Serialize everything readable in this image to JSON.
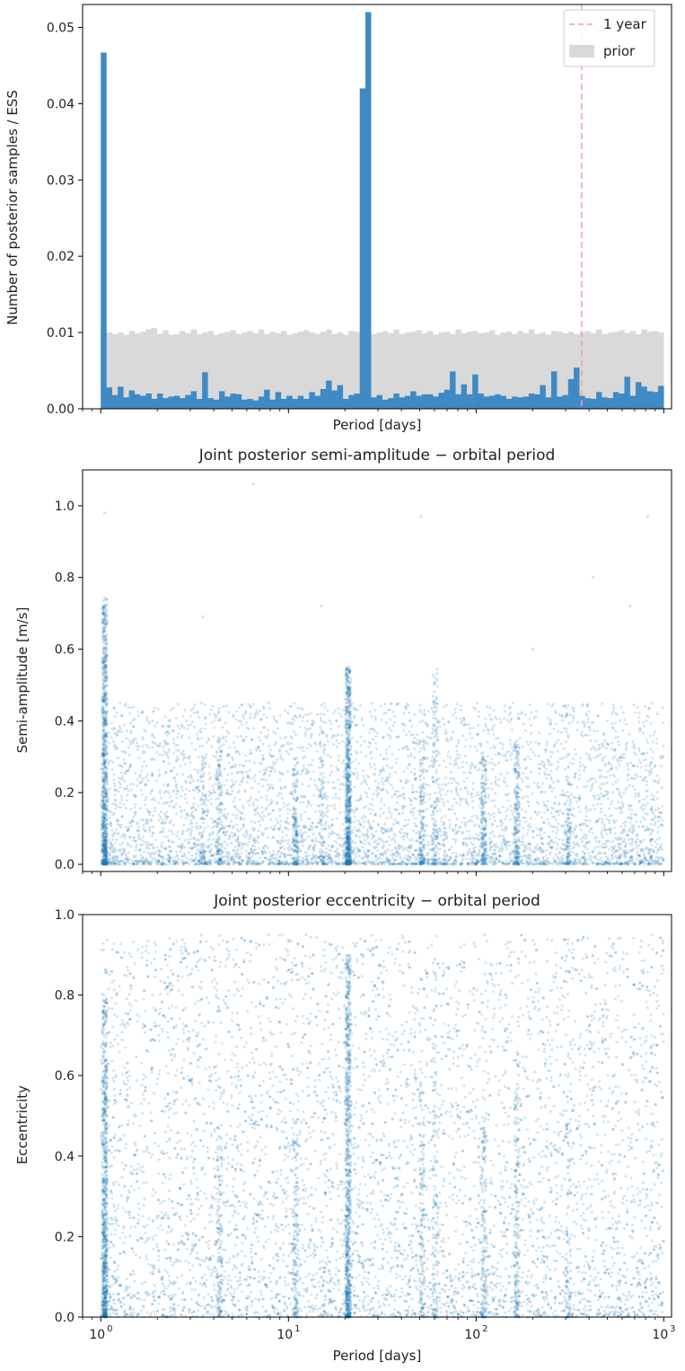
{
  "chart_data": [
    {
      "type": "bar",
      "title": "",
      "xlabel": "Period [days]",
      "ylabel": "Number of posterior samples / ESS",
      "xscale": "log",
      "xlim": [
        0.8,
        1100
      ],
      "ylim": [
        0,
        0.053
      ],
      "yticks": [
        0.0,
        0.01,
        0.02,
        0.03,
        0.04,
        0.05
      ],
      "ytick_labels": [
        "0.00",
        "0.01",
        "0.02",
        "0.03",
        "0.04",
        "0.05"
      ],
      "grid": false,
      "legend_placement": "top-right",
      "legend": [
        {
          "label": "1 year",
          "kind": "dashed-line",
          "color": "#f4a0a0"
        },
        {
          "label": "prior",
          "kind": "patch",
          "color": "#d9d9d9"
        }
      ],
      "reference_line": {
        "label": "1 year",
        "x": 365.25
      },
      "bins": {
        "start": 1,
        "end": 1000,
        "count": 100
      },
      "series": [
        {
          "name": "prior",
          "color": "#d9d9d9",
          "values": [
            0.0097,
            0.01,
            0.0098,
            0.01,
            0.0097,
            0.0102,
            0.0099,
            0.0101,
            0.0104,
            0.0106,
            0.0098,
            0.0103,
            0.0097,
            0.0098,
            0.0102,
            0.0099,
            0.0104,
            0.0098,
            0.01,
            0.0102,
            0.0097,
            0.0099,
            0.0101,
            0.0103,
            0.0098,
            0.01,
            0.0102,
            0.0099,
            0.0104,
            0.0098,
            0.0101,
            0.0099,
            0.0102,
            0.0097,
            0.0099,
            0.0101,
            0.0103,
            0.01,
            0.0098,
            0.0101,
            0.0104,
            0.0098,
            0.01,
            0.0097,
            0.0102,
            0.0101,
            0.0099,
            0.0101,
            0.0098,
            0.01,
            0.0102,
            0.0099,
            0.0104,
            0.0098,
            0.01,
            0.0101,
            0.0103,
            0.0099,
            0.0102,
            0.0097,
            0.01,
            0.0101,
            0.0098,
            0.0104,
            0.0099,
            0.0101,
            0.0102,
            0.0099,
            0.01,
            0.0103,
            0.0097,
            0.01,
            0.0101,
            0.0098,
            0.0102,
            0.0099,
            0.0104,
            0.0098,
            0.01,
            0.0097,
            0.0102,
            0.0101,
            0.0099,
            0.0101,
            0.0098,
            0.01,
            0.0102,
            0.0099,
            0.0104,
            0.0098,
            0.01,
            0.0101,
            0.0103,
            0.0099,
            0.0102,
            0.0098,
            0.0104,
            0.0101,
            0.0102,
            0.01
          ]
        },
        {
          "name": "posterior",
          "color": "#3f8ac4",
          "values": [
            0.0467,
            0.0028,
            0.0018,
            0.0029,
            0.0015,
            0.0024,
            0.0019,
            0.0017,
            0.002,
            0.0013,
            0.002,
            0.0014,
            0.0016,
            0.0017,
            0.0014,
            0.0018,
            0.0023,
            0.0013,
            0.0048,
            0.0014,
            0.0012,
            0.0023,
            0.0016,
            0.002,
            0.0019,
            0.0012,
            0.0013,
            0.0011,
            0.0016,
            0.0025,
            0.0012,
            0.0022,
            0.0013,
            0.0017,
            0.0013,
            0.0017,
            0.0013,
            0.0022,
            0.0017,
            0.0026,
            0.0037,
            0.0024,
            0.0031,
            0.0013,
            0.0018,
            0.002,
            0.042,
            0.052,
            0.0015,
            0.0018,
            0.0012,
            0.0014,
            0.002,
            0.0015,
            0.0017,
            0.0023,
            0.0017,
            0.0019,
            0.0019,
            0.0016,
            0.0021,
            0.0025,
            0.0049,
            0.0019,
            0.0032,
            0.0019,
            0.0045,
            0.002,
            0.0016,
            0.0017,
            0.0019,
            0.0017,
            0.0013,
            0.0016,
            0.0015,
            0.0016,
            0.002,
            0.0019,
            0.0031,
            0.0015,
            0.0049,
            0.0016,
            0.0018,
            0.0039,
            0.0054,
            0.0017,
            0.0014,
            0.0013,
            0.0022,
            0.0015,
            0.0014,
            0.0022,
            0.002,
            0.0042,
            0.0017,
            0.0035,
            0.0029,
            0.0023,
            0.0022,
            0.003
          ]
        }
      ]
    },
    {
      "type": "scatter",
      "title": "Joint posterior semi-amplitude − orbital period",
      "xlabel": "",
      "ylabel": "Semi-amplitude [m/s]",
      "xscale": "log",
      "xlim": [
        0.8,
        1100
      ],
      "ylim": [
        -0.02,
        1.1
      ],
      "yticks": [
        0.0,
        0.2,
        0.4,
        0.6,
        0.8,
        1.0
      ],
      "ytick_labels": [
        "0.0",
        "0.2",
        "0.4",
        "0.6",
        "0.8",
        "1.0"
      ],
      "grid": false,
      "marker_color": "#1f77b4",
      "marker_opacity": 0.2,
      "background_samples": {
        "count": 5200,
        "period_range": [
          1,
          1000
        ],
        "value_range": [
          0,
          0.45
        ],
        "distribution": "concentrated near 0"
      },
      "clusters": [
        {
          "period": 1.05,
          "count": 700,
          "max": 0.75
        },
        {
          "period": 20.8,
          "count": 650,
          "max": 0.55
        },
        {
          "period": 10.9,
          "count": 130,
          "max": 0.3
        },
        {
          "period": 4.3,
          "count": 100,
          "max": 0.35
        },
        {
          "period": 51.5,
          "count": 120,
          "max": 0.35
        },
        {
          "period": 60.5,
          "count": 90,
          "max": 0.55
        },
        {
          "period": 110,
          "count": 140,
          "max": 0.3
        },
        {
          "period": 165,
          "count": 160,
          "max": 0.35
        },
        {
          "period": 310,
          "count": 80,
          "max": 0.25
        },
        {
          "period": 3.5,
          "count": 60,
          "max": 0.3
        },
        {
          "period": 15,
          "count": 60,
          "max": 0.45
        }
      ],
      "outliers": [
        [
          6.5,
          1.06
        ],
        [
          1.05,
          0.98
        ],
        [
          51,
          0.97
        ],
        [
          15,
          0.72
        ],
        [
          820,
          0.97
        ],
        [
          420,
          0.8
        ],
        [
          660,
          0.72
        ],
        [
          200,
          0.6
        ],
        [
          3.5,
          0.69
        ]
      ]
    },
    {
      "type": "scatter",
      "title": "Joint posterior eccentricity − orbital period",
      "xlabel": "Period [days]",
      "ylabel": "Eccentricity",
      "xscale": "log",
      "xlim": [
        0.8,
        1100
      ],
      "ylim": [
        0,
        1.0
      ],
      "yticks": [
        0.0,
        0.2,
        0.4,
        0.6,
        0.8,
        1.0
      ],
      "ytick_labels": [
        "0.0",
        "0.2",
        "0.4",
        "0.6",
        "0.8",
        "1.0"
      ],
      "xticks": [
        1,
        10,
        100,
        1000
      ],
      "xtick_labels": [
        {
          "base": "10",
          "exp": "0"
        },
        {
          "base": "10",
          "exp": "1"
        },
        {
          "base": "10",
          "exp": "2"
        },
        {
          "base": "10",
          "exp": "3"
        }
      ],
      "grid": false,
      "marker_color": "#1f77b4",
      "marker_opacity": 0.2,
      "background_samples": {
        "count": 6200,
        "period_range": [
          1,
          1000
        ],
        "value_range": [
          0,
          0.95
        ],
        "distribution": "denser near 0"
      },
      "clusters": [
        {
          "period": 1.05,
          "count": 700,
          "max": 0.8
        },
        {
          "period": 20.8,
          "count": 700,
          "max": 0.9
        },
        {
          "period": 10.9,
          "count": 120,
          "max": 0.5
        },
        {
          "period": 4.3,
          "count": 100,
          "max": 0.5
        },
        {
          "period": 51.5,
          "count": 120,
          "max": 0.6
        },
        {
          "period": 60.5,
          "count": 100,
          "max": 0.9
        },
        {
          "period": 110,
          "count": 140,
          "max": 0.5
        },
        {
          "period": 165,
          "count": 160,
          "max": 0.6
        },
        {
          "period": 310,
          "count": 80,
          "max": 0.5
        }
      ]
    }
  ]
}
